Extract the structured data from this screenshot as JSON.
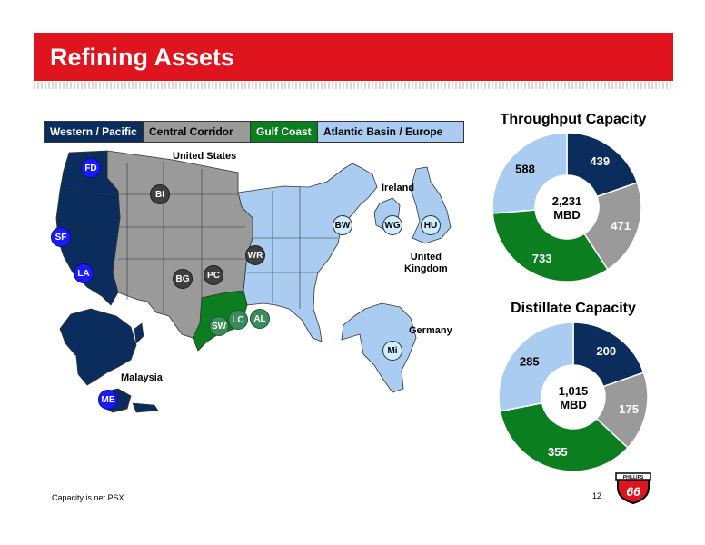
{
  "page": {
    "title": "Refining Assets",
    "footnote": "Capacity is net PSX.",
    "page_number": "12"
  },
  "legend": {
    "western_pacific": "Western / Pacific",
    "central_corridor": "Central Corridor",
    "gulf_coast": "Gulf Coast",
    "atlantic_basin_europe": "Atlantic Basin / Europe"
  },
  "map": {
    "labels": {
      "united_states": "United States",
      "ireland": "Ireland",
      "united_kingdom_line1": "United",
      "united_kingdom_line2": "Kingdom",
      "germany": "Germany",
      "malaysia": "Malaysia"
    },
    "refineries": {
      "fd": "FD",
      "sf": "SF",
      "la": "LA",
      "bi": "BI",
      "bg": "BG",
      "pc": "PC",
      "wr": "WR",
      "sw": "SW",
      "lc": "LC",
      "al": "AL",
      "bw": "BW",
      "wg": "WG",
      "hu": "HU",
      "mi": "Mi",
      "me": "ME"
    }
  },
  "colors": {
    "western_pacific": "#0b2d5e",
    "central_corridor": "#9a9a9a",
    "gulf_coast": "#0b7f1f",
    "atlantic_basin_europe": "#a9ccf0",
    "title_bar": "#e0141e"
  },
  "chart_data": [
    {
      "type": "pie",
      "title": "Throughput Capacity",
      "center_value": "2,231",
      "center_unit": "MBD",
      "slices": [
        {
          "label": "Western / Pacific",
          "value": 439,
          "display": "439"
        },
        {
          "label": "Central Corridor",
          "value": 471,
          "display": "471"
        },
        {
          "label": "Gulf Coast",
          "value": 733,
          "display": "733"
        },
        {
          "label": "Atlantic Basin / Europe",
          "value": 588,
          "display": "588"
        }
      ]
    },
    {
      "type": "pie",
      "title": "Distillate Capacity",
      "center_value": "1,015",
      "center_unit": "MBD",
      "slices": [
        {
          "label": "Western / Pacific",
          "value": 200,
          "display": "200"
        },
        {
          "label": "Central Corridor",
          "value": 175,
          "display": "175"
        },
        {
          "label": "Gulf Coast",
          "value": 355,
          "display": "355"
        },
        {
          "label": "Atlantic Basin / Europe",
          "value": 285,
          "display": "285"
        }
      ]
    }
  ],
  "logo": {
    "line1": "PHILLIPS",
    "line2": "66"
  }
}
